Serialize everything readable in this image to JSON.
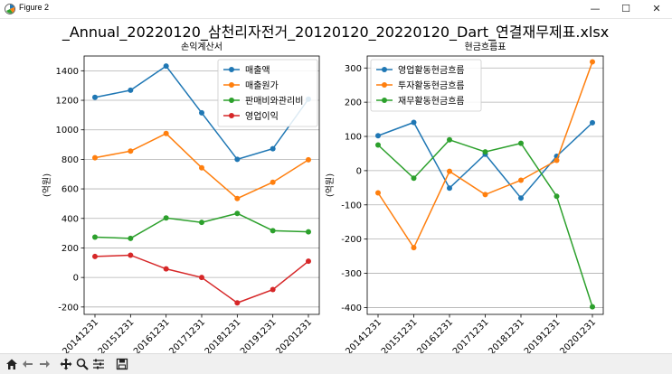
{
  "window": {
    "title": "Figure 2",
    "minimize_glyph": "—",
    "maximize_glyph": "☐",
    "close_glyph": "✕"
  },
  "figure": {
    "suptitle": "_Annual_20220120_삼천리자전거_20120120_20220120_Dart_연결재무제표.xlsx"
  },
  "toolbar": {
    "icons": [
      "home-icon",
      "back-arrow-icon",
      "forward-arrow-icon",
      "pan-icon",
      "zoom-icon",
      "subplots-config-icon",
      "save-icon"
    ]
  },
  "colors": {
    "blue": "#1f77b4",
    "orange": "#ff7f0e",
    "green": "#2ca02c",
    "red": "#d62728"
  },
  "chart_data": [
    {
      "type": "line",
      "title": "손익계산서",
      "xlabel": "",
      "ylabel": "(억원)",
      "categories": [
        "20141231",
        "20151231",
        "20161231",
        "20171231",
        "20181231",
        "20191231",
        "20201231"
      ],
      "ylim": [
        -250,
        1500
      ],
      "yticks": [
        -200,
        0,
        200,
        400,
        600,
        800,
        1000,
        1200,
        1400
      ],
      "grid": "horizontal",
      "legend": "top-right",
      "series": [
        {
          "name": "매출액",
          "color": "#1f77b4",
          "values": [
            1220,
            1268,
            1432,
            1115,
            800,
            872,
            1208
          ]
        },
        {
          "name": "매출원가",
          "color": "#ff7f0e",
          "values": [
            811,
            856,
            975,
            743,
            535,
            645,
            797
          ]
        },
        {
          "name": "판매비와관리비",
          "color": "#2ca02c",
          "values": [
            273,
            265,
            403,
            373,
            434,
            317,
            309
          ]
        },
        {
          "name": "영업이익",
          "color": "#d62728",
          "values": [
            142,
            151,
            58,
            0,
            -172,
            -82,
            110
          ]
        }
      ]
    },
    {
      "type": "line",
      "title": "현금흐름표",
      "xlabel": "",
      "ylabel": "(억원)",
      "categories": [
        "20141231",
        "20151231",
        "20161231",
        "20171231",
        "20181231",
        "20191231",
        "20201231"
      ],
      "ylim": [
        -420,
        335
      ],
      "yticks": [
        -400,
        -300,
        -200,
        -100,
        0,
        100,
        200,
        300
      ],
      "grid": "horizontal",
      "legend": "top-left",
      "series": [
        {
          "name": "영업활동현금흐름",
          "color": "#1f77b4",
          "values": [
            102,
            141,
            -51,
            48,
            -80,
            42,
            140
          ]
        },
        {
          "name": "투자활동현금흐름",
          "color": "#ff7f0e",
          "values": [
            -65,
            -225,
            -2,
            -70,
            -28,
            30,
            318
          ]
        },
        {
          "name": "재무활동현금흐름",
          "color": "#2ca02c",
          "values": [
            75,
            -22,
            90,
            55,
            80,
            -75,
            -398
          ]
        }
      ]
    }
  ]
}
